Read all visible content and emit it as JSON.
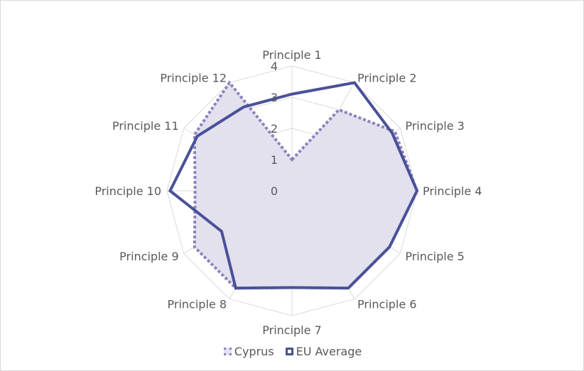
{
  "chart_data": {
    "type": "radar",
    "title": "",
    "categories": [
      "Principle 1",
      "Principle 2",
      "Principle 3",
      "Principle 4",
      "Principle 5",
      "Principle 6",
      "Principle 7",
      "Principle 8",
      "Principle 9",
      "Principle 10",
      "Principle 11",
      "Principle 12"
    ],
    "radial_ticks": [
      "0",
      "1",
      "2",
      "3",
      "4"
    ],
    "rlim": [
      0,
      4
    ],
    "legend_position": "bottom",
    "series": [
      {
        "name": "Cyprus",
        "values": [
          1,
          3,
          3.8,
          4,
          3.6,
          3.6,
          3.1,
          3.6,
          3.6,
          3.1,
          3.6,
          4
        ],
        "line_style": "dotted",
        "color": "#8f82bd",
        "fill": "#e3e1ee"
      },
      {
        "name": "EU Average",
        "values": [
          3.1,
          4,
          3.7,
          4,
          3.6,
          3.6,
          3.1,
          3.6,
          2.6,
          3.9,
          3.5,
          3.1
        ],
        "line_style": "solid",
        "color": "#4a5199",
        "fill": "none"
      }
    ]
  }
}
